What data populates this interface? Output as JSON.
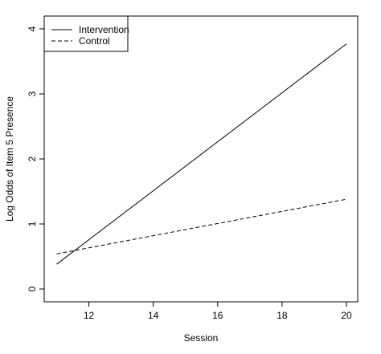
{
  "chart_data": {
    "type": "line",
    "xlabel": "Session",
    "ylabel": "Log Odds of Item 5 Presence",
    "xlim": [
      11,
      20
    ],
    "ylim": [
      0,
      4
    ],
    "x_ticks": [
      12,
      14,
      16,
      18,
      20
    ],
    "y_ticks": [
      0,
      1,
      2,
      3,
      4
    ],
    "legend_position": "top-left",
    "grid": false,
    "series": [
      {
        "name": "Intervention",
        "line_style": "solid",
        "color": "#000000",
        "x": [
          11,
          20
        ],
        "y": [
          0.38,
          3.77
        ]
      },
      {
        "name": "Control",
        "line_style": "dashed",
        "color": "#000000",
        "x": [
          11,
          20
        ],
        "y": [
          0.54,
          1.38
        ]
      }
    ]
  }
}
